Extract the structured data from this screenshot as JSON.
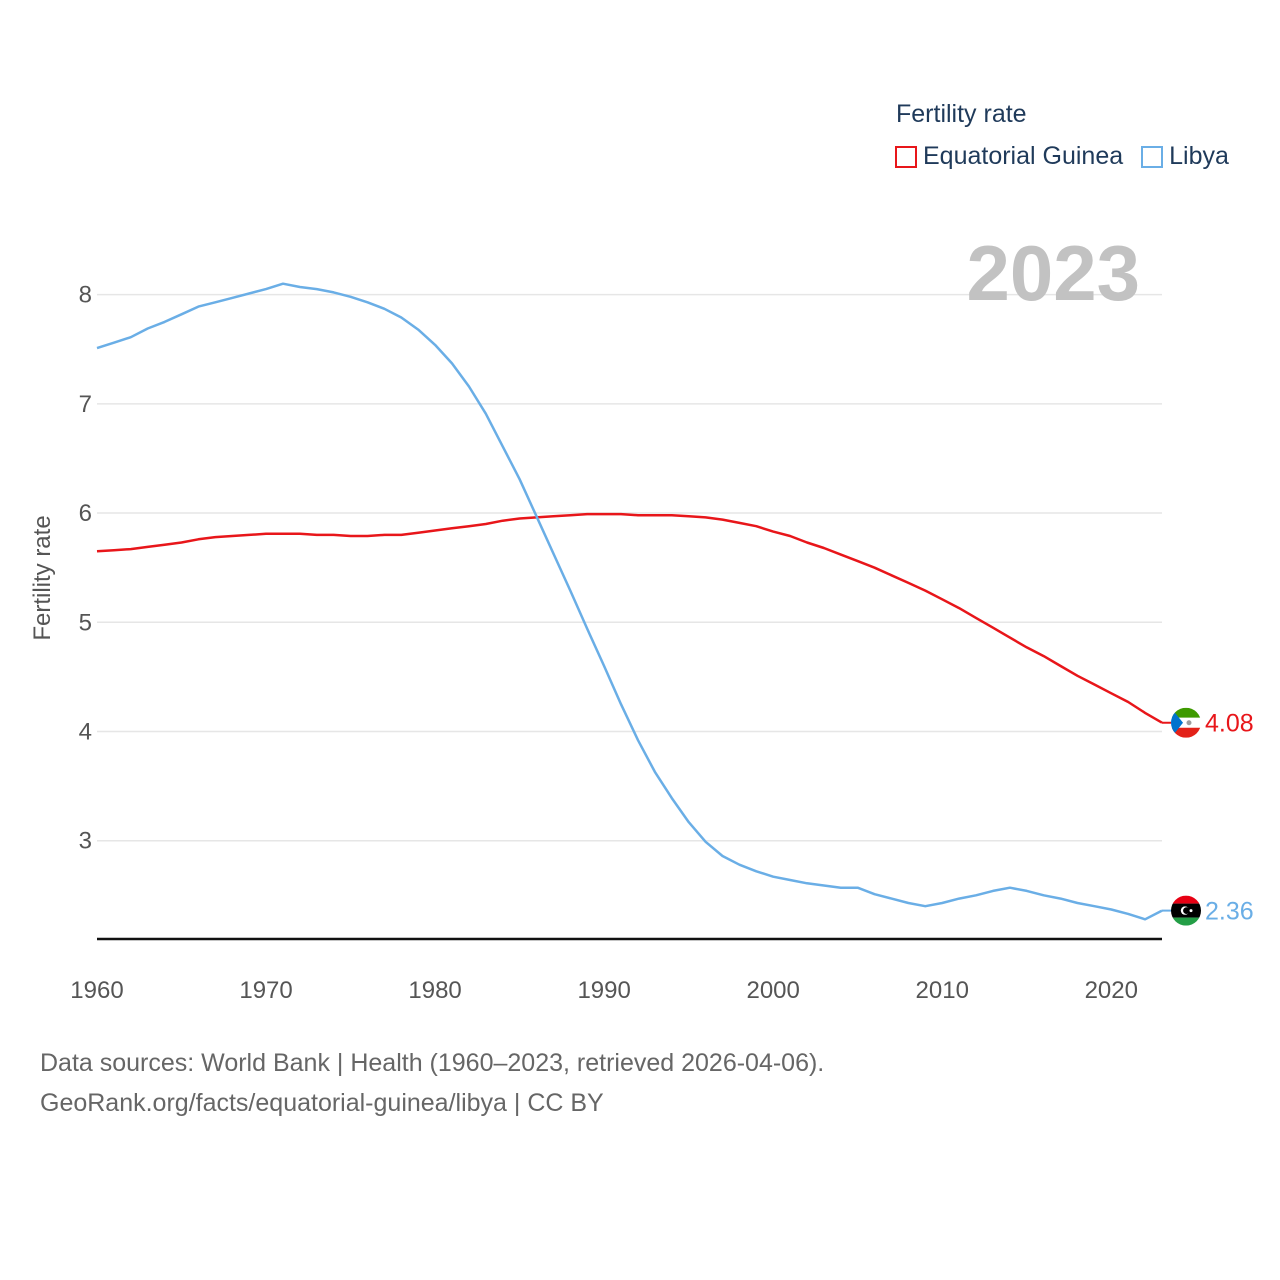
{
  "legend": {
    "title": "Fertility rate",
    "items": [
      {
        "label": "Equatorial Guinea",
        "color": "#e8161a"
      },
      {
        "label": "Libya",
        "color": "#6aaee6"
      }
    ]
  },
  "year_label": "2023",
  "source": {
    "line1": "Data sources: World Bank | Health (1960–2023, retrieved 2026-04-06).",
    "line2": "GeoRank.org/facts/equatorial-guinea/libya | CC BY"
  },
  "chart_data": {
    "type": "line",
    "title": "Fertility rate",
    "xlabel": "",
    "ylabel": "Fertility rate",
    "xlim": [
      1960,
      2023
    ],
    "ylim": [
      2.1,
      8.5
    ],
    "xticks": [
      1960,
      1970,
      1980,
      1990,
      2000,
      2010,
      2020
    ],
    "yticks": [
      3,
      4,
      5,
      6,
      7,
      8
    ],
    "grid": true,
    "legend_position": "top-right",
    "x": [
      1960,
      1961,
      1962,
      1963,
      1964,
      1965,
      1966,
      1967,
      1968,
      1969,
      1970,
      1971,
      1972,
      1973,
      1974,
      1975,
      1976,
      1977,
      1978,
      1979,
      1980,
      1981,
      1982,
      1983,
      1984,
      1985,
      1986,
      1987,
      1988,
      1989,
      1990,
      1991,
      1992,
      1993,
      1994,
      1995,
      1996,
      1997,
      1998,
      1999,
      2000,
      2001,
      2002,
      2003,
      2004,
      2005,
      2006,
      2007,
      2008,
      2009,
      2010,
      2011,
      2012,
      2013,
      2014,
      2015,
      2016,
      2017,
      2018,
      2019,
      2020,
      2021,
      2022,
      2023
    ],
    "series": [
      {
        "name": "Equatorial Guinea",
        "color": "#e8161a",
        "end_label": "4.08",
        "values": [
          5.65,
          5.66,
          5.67,
          5.69,
          5.71,
          5.73,
          5.76,
          5.78,
          5.79,
          5.8,
          5.81,
          5.81,
          5.81,
          5.8,
          5.8,
          5.79,
          5.79,
          5.8,
          5.8,
          5.82,
          5.84,
          5.86,
          5.88,
          5.9,
          5.93,
          5.95,
          5.96,
          5.97,
          5.98,
          5.99,
          5.99,
          5.99,
          5.98,
          5.98,
          5.98,
          5.97,
          5.96,
          5.94,
          5.91,
          5.88,
          5.83,
          5.79,
          5.73,
          5.68,
          5.62,
          5.56,
          5.5,
          5.43,
          5.36,
          5.29,
          5.21,
          5.13,
          5.04,
          4.95,
          4.86,
          4.77,
          4.69,
          4.6,
          4.51,
          4.43,
          4.35,
          4.27,
          4.17,
          4.08
        ]
      },
      {
        "name": "Libya",
        "color": "#6aaee6",
        "end_label": "2.36",
        "values": [
          7.51,
          7.56,
          7.61,
          7.69,
          7.75,
          7.82,
          7.89,
          7.93,
          7.97,
          8.01,
          8.05,
          8.1,
          8.07,
          8.05,
          8.02,
          7.98,
          7.93,
          7.87,
          7.79,
          7.68,
          7.54,
          7.37,
          7.16,
          6.91,
          6.61,
          6.31,
          5.97,
          5.63,
          5.29,
          4.94,
          4.6,
          4.25,
          3.92,
          3.63,
          3.39,
          3.17,
          2.99,
          2.86,
          2.78,
          2.72,
          2.67,
          2.64,
          2.61,
          2.59,
          2.57,
          2.57,
          2.51,
          2.47,
          2.43,
          2.4,
          2.43,
          2.47,
          2.5,
          2.54,
          2.57,
          2.54,
          2.5,
          2.47,
          2.43,
          2.4,
          2.37,
          2.33,
          2.28,
          2.36
        ]
      }
    ]
  }
}
